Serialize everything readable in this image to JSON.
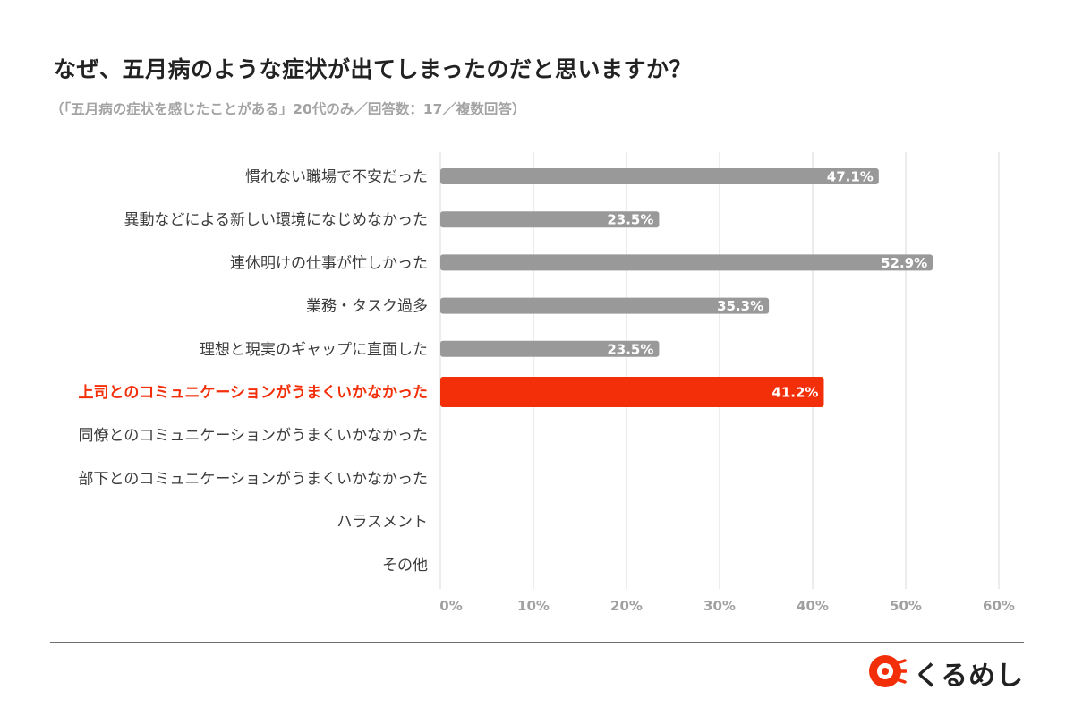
{
  "title": "なぜ、五月病のような症状が出てしまったのだと思いますか？",
  "subtitle": "（「五月病の症状を感じたことがある」20代のみ／回答数：17／複数回答）",
  "brand": {
    "name": "くるめし",
    "logo_icon": "kurumeshi-logo-icon",
    "logo_color": "#f32f0a"
  },
  "chart_data": {
    "type": "bar",
    "orientation": "horizontal",
    "categories": [
      "慣れない職場で不安だった",
      "異動などによる新しい環境になじめなかった",
      "連休明けの仕事が忙しかった",
      "業務・タスク過多",
      "理想と現実のギャップに直面した",
      "上司とのコミュニケーションがうまくいかなかった",
      "同僚とのコミュニケーションがうまくいかなかった",
      "部下とのコミュニケーションがうまくいかなかった",
      "ハラスメント",
      "その他"
    ],
    "values": [
      47.1,
      23.5,
      52.9,
      35.3,
      23.5,
      41.2,
      0,
      0,
      0,
      0
    ],
    "value_labels": [
      "47.1%",
      "23.5%",
      "52.9%",
      "35.3%",
      "23.5%",
      "41.2%",
      "",
      "",
      "",
      ""
    ],
    "highlight_index": 5,
    "bar_color": "#999999",
    "highlight_color": "#f32f0a",
    "xlim": [
      0,
      60
    ],
    "x_ticks": [
      0,
      10,
      20,
      30,
      40,
      50,
      60
    ],
    "x_tick_labels": [
      "0%",
      "10%",
      "20%",
      "30%",
      "40%",
      "50%",
      "60%"
    ],
    "grid": true,
    "legend": "none"
  }
}
